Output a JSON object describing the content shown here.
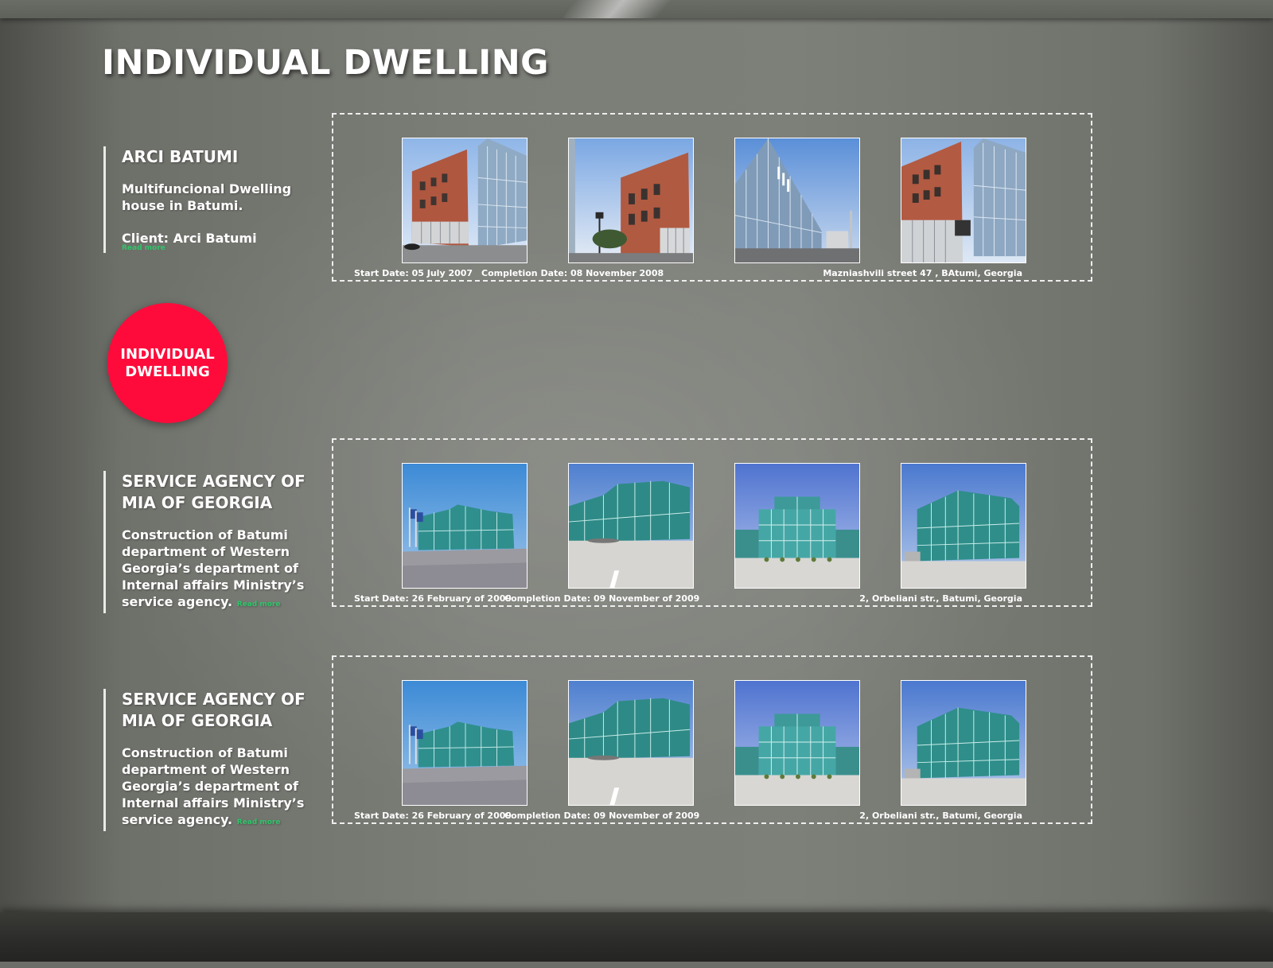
{
  "page": {
    "title": "INDIVIDUAL DWELLING"
  },
  "category_badge": {
    "label": "INDIVIDUAL DWELLING",
    "color": "#ff0b3b"
  },
  "projects": [
    {
      "title": "ARCI BATUMI",
      "description": "Multifuncional Dwelling house in Batumi.",
      "client": "Client: Arci Batumi",
      "read_more": "Read more",
      "start_date": "Start Date: 05 July 2007",
      "completion_date": "Completion Date: 08 November 2008",
      "address": "Mazniashvili street 47 , BAtumi, Georgia",
      "photos": [
        "brick-glass-building-photo",
        "brick-facade-street-photo",
        "glass-facade-photo",
        "brick-glass-corner-photo"
      ]
    },
    {
      "title": "SERVICE AGENCY OF MIA OF GEORGIA",
      "description": "Construction of Batumi department of Western Georgia’s department of Internal affairs Ministry’s service agency.",
      "read_more": "Read more",
      "start_date": "Start Date: 26 February of 2009",
      "completion_date": "Completion Date: 09 November  of 2009",
      "address": "2, Orbeliani str., Batumi, Georgia",
      "photos": [
        "glass-office-wide-photo",
        "glass-office-corner-photo",
        "glass-office-front-photo",
        "glass-office-side-photo"
      ]
    },
    {
      "title": "SERVICE AGENCY OF MIA OF GEORGIA",
      "description": "Construction of Batumi department of Western Georgia’s department of Internal affairs Ministry’s service agency.",
      "read_more": "Read more",
      "start_date": "Start Date: 26 February of 2009",
      "completion_date": "Completion Date: 09 November  of 2009",
      "address": "2, Orbeliani str., Batumi, Georgia",
      "photos": [
        "glass-office-wide-photo",
        "glass-office-corner-photo",
        "glass-office-front-photo",
        "glass-office-side-photo"
      ]
    }
  ],
  "colors": {
    "background": "#7b7d77",
    "accent_red": "#ff0b3b",
    "link_green": "#2fc46a"
  }
}
